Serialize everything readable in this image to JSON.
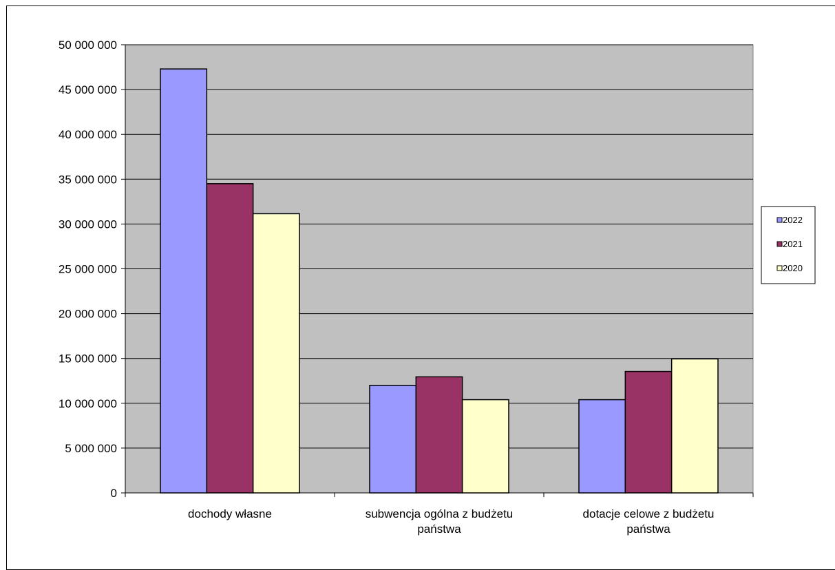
{
  "chart_data": {
    "type": "bar",
    "title": "",
    "xlabel": "",
    "ylabel": "",
    "ylim": [
      0,
      50000000
    ],
    "yticks": [
      0,
      5000000,
      10000000,
      15000000,
      20000000,
      25000000,
      30000000,
      35000000,
      40000000,
      45000000,
      50000000
    ],
    "ytick_labels": [
      "0",
      "5 000 000",
      "10 000 000",
      "15 000 000",
      "20 000 000",
      "25 000 000",
      "30 000 000",
      "35 000 000",
      "40 000 000",
      "45 000 000",
      "50 000 000"
    ],
    "categories": [
      [
        "dochody własne"
      ],
      [
        "subwencja ogólna z budżetu",
        "państwa"
      ],
      [
        "dotacje celowe z budżetu",
        "państwa"
      ]
    ],
    "series": [
      {
        "name": "2022",
        "color": "#9999ff",
        "values": [
          47300000,
          12000000,
          10400000
        ]
      },
      {
        "name": "2021",
        "color": "#993366",
        "values": [
          34500000,
          12950000,
          13550000
        ]
      },
      {
        "name": "2020",
        "color": "#ffffcc",
        "values": [
          31150000,
          10400000,
          14950000
        ]
      }
    ],
    "grid": true,
    "plot_background": "#c0c0c0",
    "legend_position": "right"
  }
}
